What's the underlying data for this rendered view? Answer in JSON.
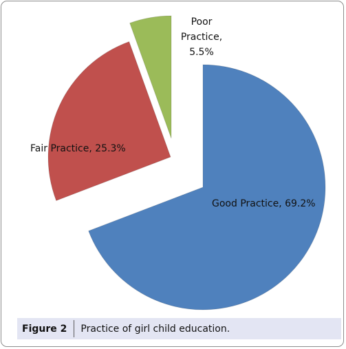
{
  "chart_data": {
    "type": "pie",
    "title": "",
    "legend": "none",
    "labels_in_slices": true,
    "slices": [
      {
        "label": "Good Practice",
        "value": 69.2,
        "display": "Good Practice, 69.2%",
        "color": "#4f81bd"
      },
      {
        "label": "Fair Practice",
        "value": 25.3,
        "display": "Fair Practice, 25.3%",
        "color": "#c0504d"
      },
      {
        "label": "Poor Practice",
        "value": 5.5,
        "display": [
          "Poor",
          "Practice,",
          "5.5%"
        ],
        "color": "#9bbb59"
      }
    ]
  },
  "caption": {
    "number": "Figure 2",
    "text": "Practice of girl child education."
  }
}
